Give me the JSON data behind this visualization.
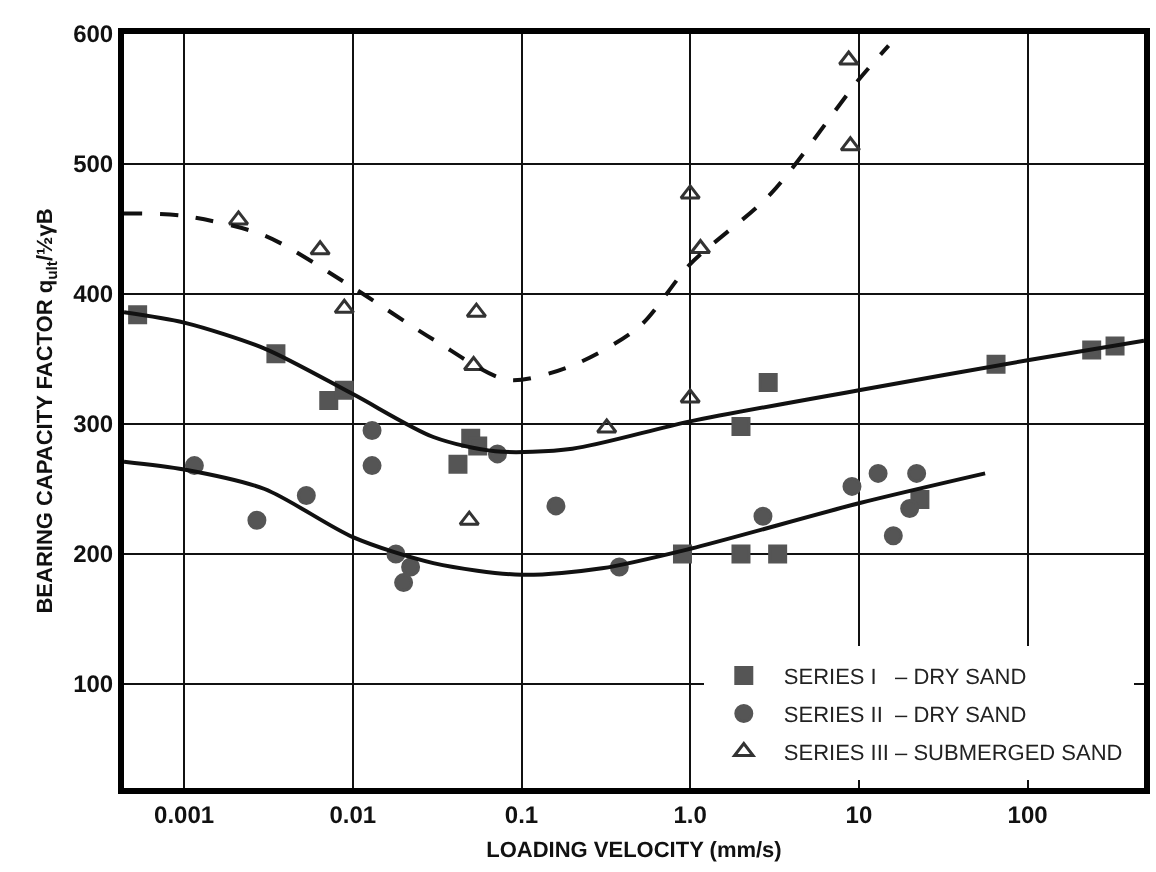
{
  "chart_data": {
    "type": "scatter",
    "xlabel": "LOADING VELOCITY (mm/s)",
    "ylabel": "BEARING CAPACITY FACTOR q$_{ult}$/½γB",
    "log": "x",
    "xlim": [
      0.00044,
      490
    ],
    "xticks": [
      0.001,
      0.01,
      0.1,
      {
        "value": 1,
        "label": "1.0"
      },
      10,
      100
    ],
    "ylim": [
      20,
      600
    ],
    "yticks": [
      100,
      200,
      300,
      400,
      500,
      600
    ],
    "grid": true,
    "legend": "bottom right",
    "series": [
      {
        "name": "SERIES I   – DRY SAND",
        "color": "#555555",
        "marker": "square",
        "x": [
          0.00053,
          0.0035,
          0.0072,
          0.0089,
          0.042,
          0.05,
          0.055,
          0.9,
          2.0,
          2.0,
          3.3,
          2.9,
          23,
          65,
          240,
          330
        ],
        "values": [
          384,
          354,
          318,
          326,
          269,
          289,
          283,
          200,
          298,
          200,
          200,
          332,
          242,
          346,
          357,
          360
        ]
      },
      {
        "name": "SERIES II  – DRY SAND",
        "color": "#555555",
        "marker": "circle",
        "x": [
          0.00115,
          0.0027,
          0.0053,
          0.013,
          0.013,
          0.018,
          0.022,
          0.02,
          0.072,
          0.16,
          0.38,
          2.7,
          9.1,
          13,
          22,
          20,
          16
        ],
        "values": [
          268,
          226,
          245,
          295,
          268,
          200,
          190,
          178,
          277,
          237,
          190,
          229,
          252,
          262,
          262,
          235,
          214
        ]
      },
      {
        "name": "SERIES III – SUBMERGED SAND",
        "color": "#333333",
        "marker": "triangle",
        "x": [
          0.0021,
          0.0064,
          0.0089,
          0.054,
          0.052,
          0.049,
          0.32,
          1.0,
          1.15,
          1.0,
          8.7,
          8.9
        ],
        "values": [
          457,
          434,
          389,
          386,
          345,
          226,
          297,
          477,
          435,
          320,
          580,
          514
        ]
      },
      {
        "type": "line",
        "color": "#111111",
        "line_style": "solid",
        "x": [
          0.00044,
          0.001,
          0.003,
          0.01,
          0.03,
          0.07,
          0.2,
          1,
          10,
          100,
          490
        ],
        "values": [
          386,
          378,
          358,
          323,
          290,
          279,
          281,
          302,
          326,
          349,
          364
        ]
      },
      {
        "type": "line",
        "color": "#111111",
        "line_style": "solid",
        "x": [
          0.00044,
          0.001,
          0.003,
          0.01,
          0.03,
          0.1,
          0.3,
          1,
          10,
          56
        ],
        "values": [
          271,
          265,
          250,
          213,
          193,
          184,
          189,
          204,
          239,
          262
        ]
      },
      {
        "type": "line",
        "color": "#111111",
        "line_style": "dashed",
        "x": [
          0.00044,
          0.001,
          0.003,
          0.01,
          0.03,
          0.083,
          0.2,
          0.5,
          1,
          3,
          10,
          15
        ],
        "values": [
          462,
          460,
          445,
          405,
          365,
          334,
          345,
          375,
          423,
          477,
          565,
          591
        ]
      }
    ]
  }
}
